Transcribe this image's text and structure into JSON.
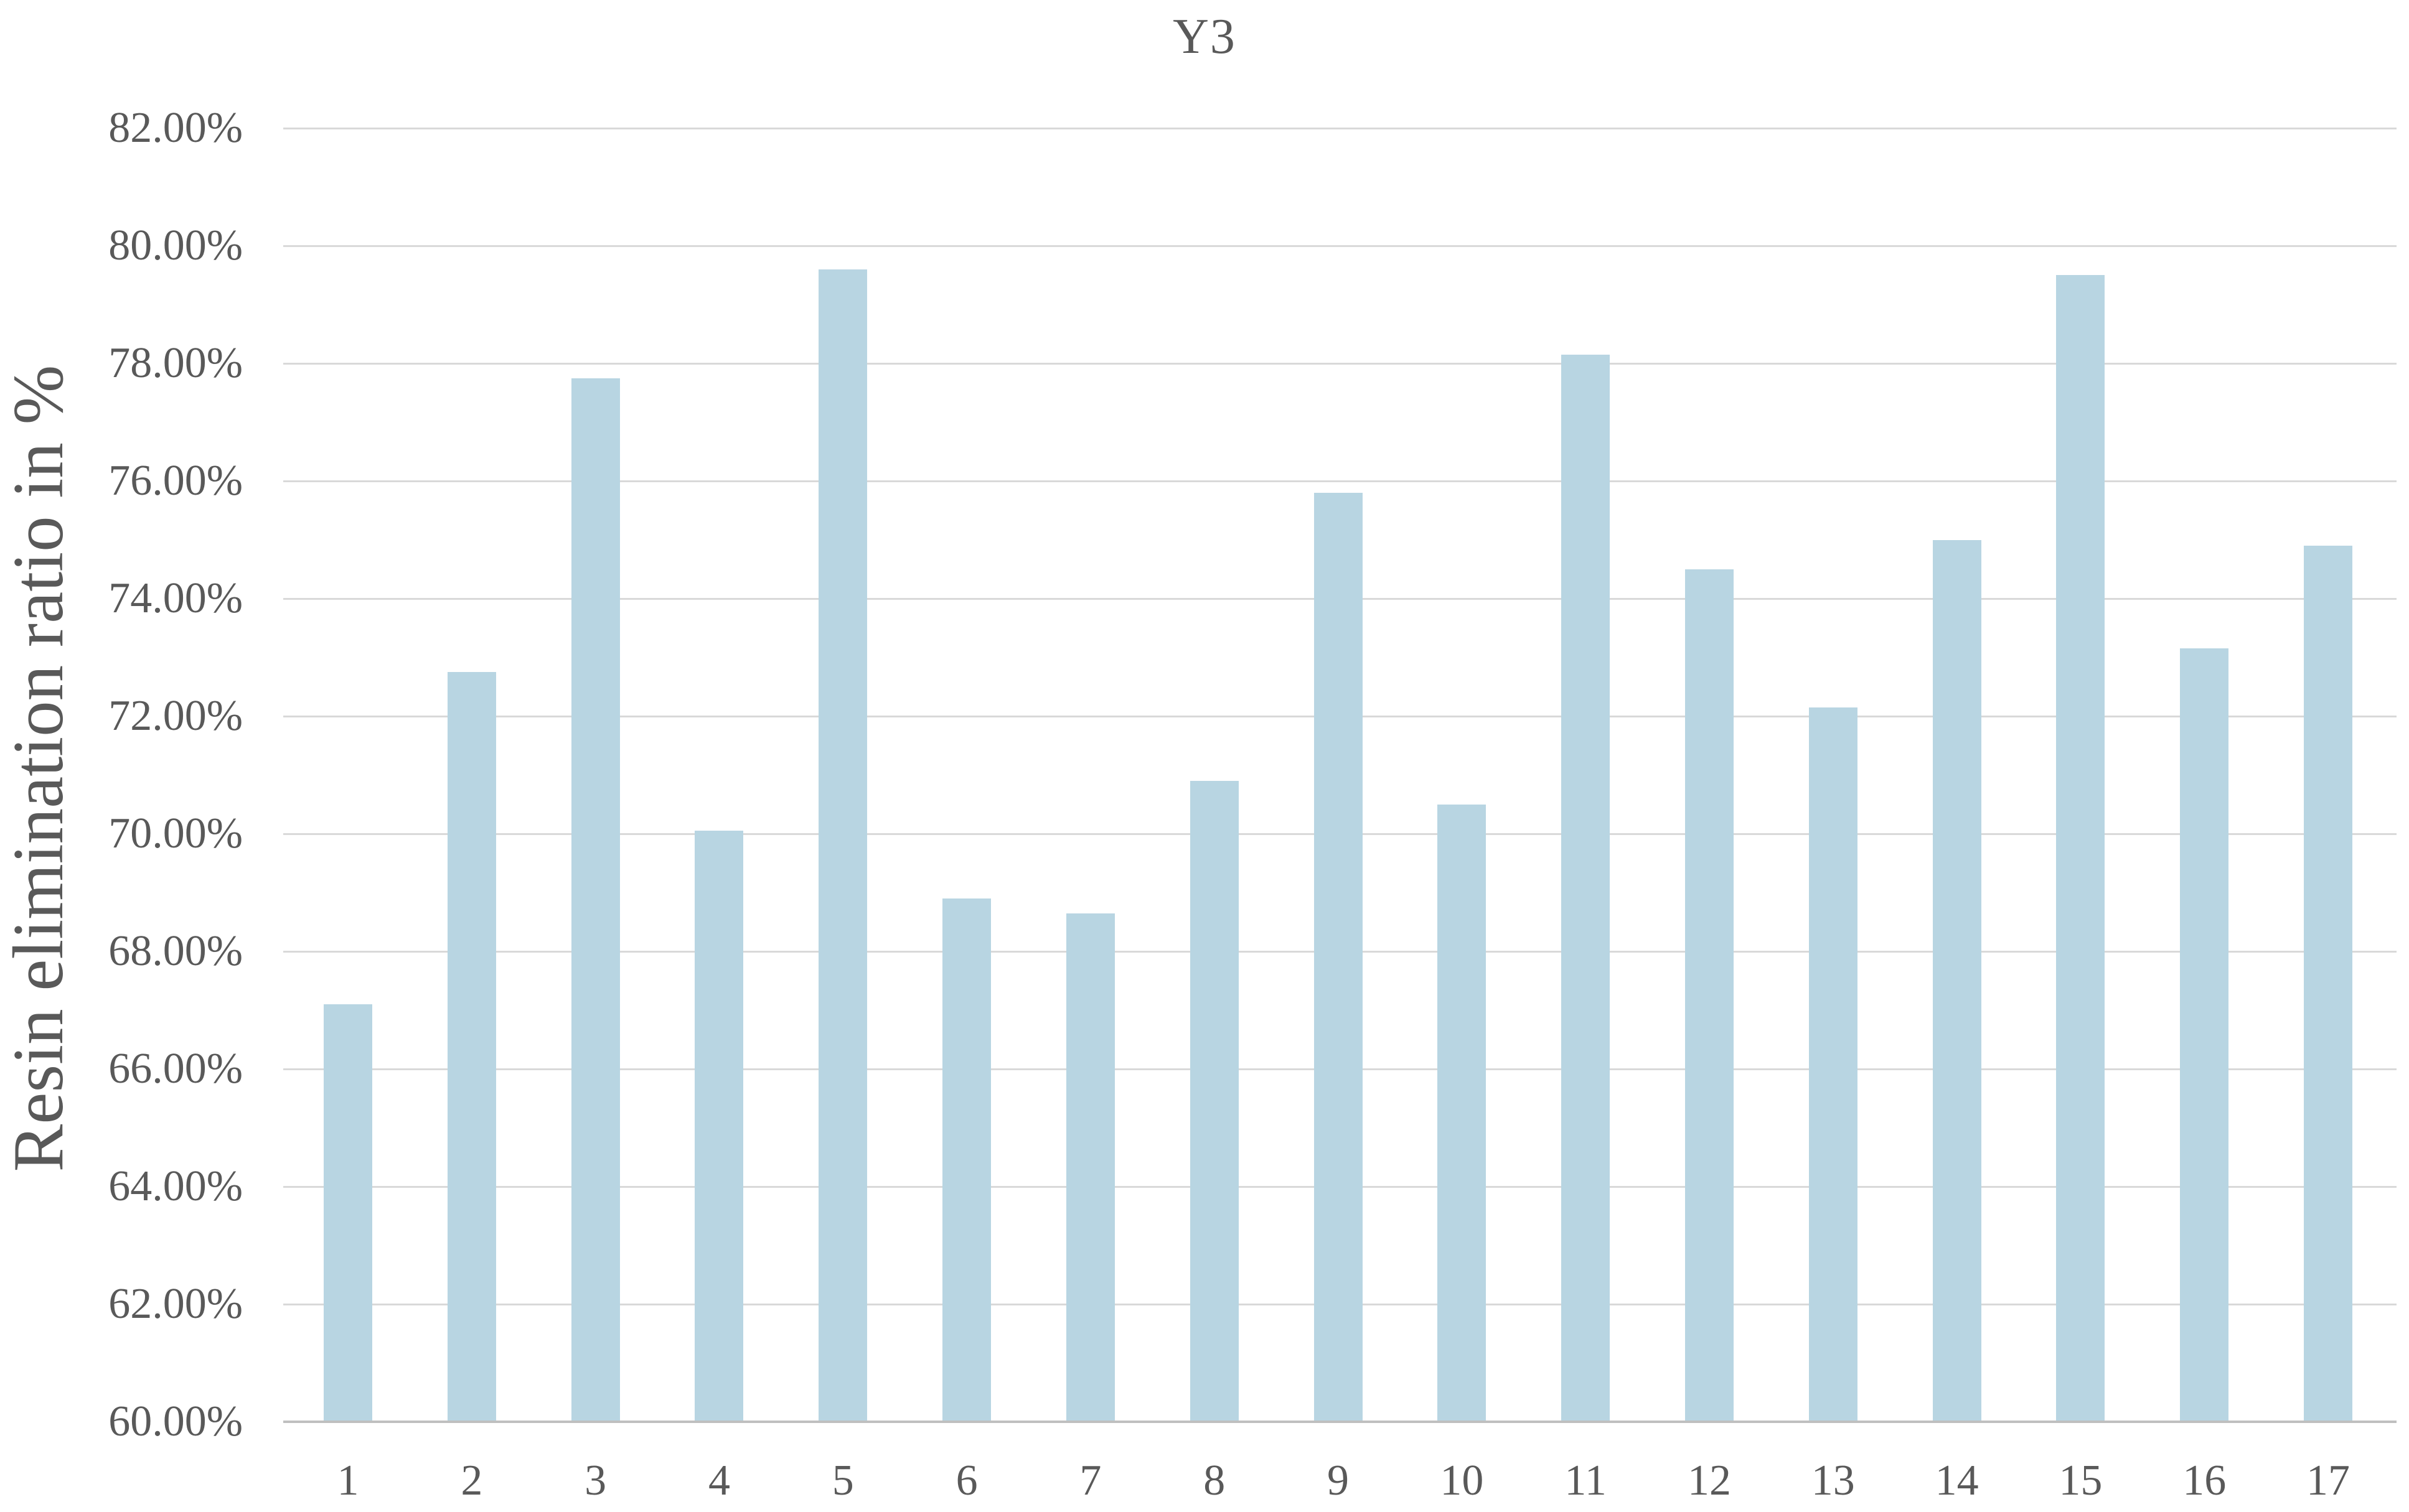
{
  "chart": {
    "title": "Y3",
    "ylabel": "Resin elimination ratio in %"
  },
  "chart_data": {
    "type": "bar",
    "title": "Y3",
    "xlabel": "",
    "ylabel": "Resin elimination ratio in %",
    "categories": [
      "1",
      "2",
      "3",
      "4",
      "5",
      "6",
      "7",
      "8",
      "9",
      "10",
      "11",
      "12",
      "13",
      "14",
      "15",
      "16",
      "17"
    ],
    "values": [
      67.1,
      72.75,
      77.75,
      70.05,
      79.6,
      68.9,
      68.65,
      70.9,
      75.8,
      70.5,
      78.15,
      74.5,
      72.15,
      75.0,
      79.5,
      73.15,
      74.9
    ],
    "unit": "%",
    "ylim": [
      60,
      82
    ],
    "ytick_step": 2,
    "ytick_labels": [
      "60.00%",
      "62.00%",
      "64.00%",
      "66.00%",
      "68.00%",
      "70.00%",
      "72.00%",
      "74.00%",
      "76.00%",
      "78.00%",
      "80.00%",
      "82.00%"
    ],
    "grid": true,
    "legend": false,
    "bar_color": "#B8D5E2",
    "gridline_color": "#D9D9D9",
    "axis_line_color": "#BFBFBF",
    "text_color": "#595959"
  }
}
